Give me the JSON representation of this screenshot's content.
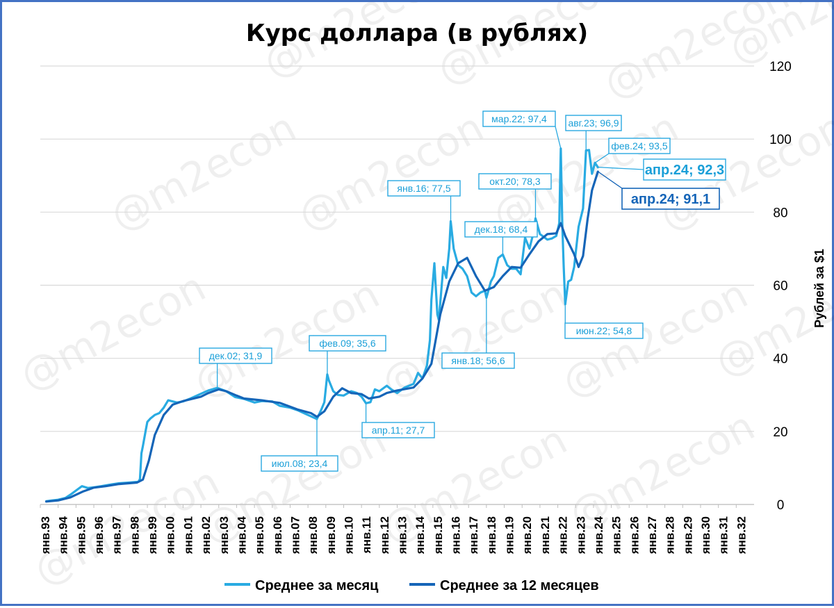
{
  "watermark": "@m2econ",
  "chart_data": {
    "type": "line",
    "title": "Курс доллара (в рублях)",
    "ylabel": "Рублей за $1",
    "xlabel": "",
    "ylim": [
      0,
      120
    ],
    "yticks": [
      0,
      20,
      40,
      60,
      80,
      100,
      120
    ],
    "y_axis_position": "right",
    "grid": true,
    "legend_position": "bottom",
    "x_tick_labels": [
      "янв.93",
      "янв.94",
      "янв.95",
      "янв.96",
      "янв.97",
      "янв.98",
      "янв.99",
      "янв.00",
      "янв.01",
      "янв.02",
      "янв.03",
      "янв.04",
      "янв.05",
      "янв.06",
      "янв.07",
      "янв.08",
      "янв.09",
      "янв.10",
      "янв.11",
      "янв.12",
      "янв.13",
      "янв.14",
      "янв.15",
      "янв.16",
      "янв.17",
      "янв.18",
      "янв.19",
      "янв.20",
      "янв.21",
      "янв.22",
      "янв.23",
      "янв.24",
      "янв.25",
      "янв.26",
      "янв.27",
      "янв.28",
      "янв.29",
      "янв.30",
      "янв.31",
      "янв.32"
    ],
    "x_range": [
      "1993-01",
      "2032-12"
    ],
    "series": [
      {
        "name": "Среднее за месяц",
        "color": "#29abe2",
        "points": [
          [
            "1993-05",
            0.9
          ],
          [
            "1993-09",
            1.1
          ],
          [
            "1994-01",
            1.3
          ],
          [
            "1994-06",
            1.8
          ],
          [
            "1994-10",
            2.9
          ],
          [
            "1995-01",
            3.8
          ],
          [
            "1995-05",
            5.0
          ],
          [
            "1995-09",
            4.5
          ],
          [
            "1996-01",
            4.7
          ],
          [
            "1996-06",
            5.0
          ],
          [
            "1997-01",
            5.5
          ],
          [
            "1997-06",
            5.8
          ],
          [
            "1998-01",
            6.0
          ],
          [
            "1998-07",
            6.2
          ],
          [
            "1998-08",
            7.0
          ],
          [
            "1998-09",
            14.0
          ],
          [
            "1998-10",
            16.0
          ],
          [
            "1998-12",
            20.5
          ],
          [
            "1999-01",
            22.6
          ],
          [
            "1999-03",
            23.5
          ],
          [
            "1999-06",
            24.5
          ],
          [
            "1999-09",
            25.0
          ],
          [
            "1999-12",
            26.5
          ],
          [
            "2000-03",
            28.5
          ],
          [
            "2000-06",
            28.2
          ],
          [
            "2000-09",
            27.9
          ],
          [
            "2001-01",
            28.2
          ],
          [
            "2001-06",
            29.0
          ],
          [
            "2002-01",
            30.3
          ],
          [
            "2002-06",
            31.2
          ],
          [
            "2002-12",
            31.9
          ],
          [
            "2003-06",
            31.0
          ],
          [
            "2003-12",
            29.4
          ],
          [
            "2004-06",
            28.9
          ],
          [
            "2005-01",
            27.9
          ],
          [
            "2005-06",
            28.3
          ],
          [
            "2006-01",
            28.2
          ],
          [
            "2006-06",
            27.0
          ],
          [
            "2007-01",
            26.5
          ],
          [
            "2007-06",
            25.8
          ],
          [
            "2008-01",
            24.5
          ],
          [
            "2008-07",
            23.4
          ],
          [
            "2008-10",
            26.0
          ],
          [
            "2008-12",
            28.0
          ],
          [
            "2009-02",
            35.6
          ],
          [
            "2009-03",
            34.0
          ],
          [
            "2009-06",
            31.0
          ],
          [
            "2009-09",
            30.0
          ],
          [
            "2010-01",
            29.8
          ],
          [
            "2010-06",
            31.0
          ],
          [
            "2010-10",
            30.5
          ],
          [
            "2011-01",
            29.5
          ],
          [
            "2011-04",
            27.7
          ],
          [
            "2011-07",
            28.0
          ],
          [
            "2011-10",
            31.5
          ],
          [
            "2012-01",
            31.0
          ],
          [
            "2012-06",
            32.5
          ],
          [
            "2012-09",
            31.5
          ],
          [
            "2013-01",
            30.5
          ],
          [
            "2013-06",
            32.0
          ],
          [
            "2013-12",
            33.0
          ],
          [
            "2014-03",
            36.0
          ],
          [
            "2014-06",
            34.5
          ],
          [
            "2014-09",
            38.0
          ],
          [
            "2014-11",
            45.0
          ],
          [
            "2014-12",
            56.0
          ],
          [
            "2015-02",
            66.0
          ],
          [
            "2015-04",
            52.0
          ],
          [
            "2015-05",
            50.5
          ],
          [
            "2015-08",
            65.0
          ],
          [
            "2015-10",
            62.0
          ],
          [
            "2015-12",
            70.0
          ],
          [
            "2016-01",
            77.5
          ],
          [
            "2016-03",
            70.0
          ],
          [
            "2016-06",
            65.5
          ],
          [
            "2016-09",
            64.5
          ],
          [
            "2016-12",
            62.5
          ],
          [
            "2017-03",
            58.0
          ],
          [
            "2017-06",
            57.0
          ],
          [
            "2017-09",
            58.0
          ],
          [
            "2017-12",
            58.5
          ],
          [
            "2018-01",
            56.6
          ],
          [
            "2018-04",
            61.0
          ],
          [
            "2018-06",
            62.5
          ],
          [
            "2018-09",
            67.5
          ],
          [
            "2018-12",
            68.4
          ],
          [
            "2019-03",
            65.5
          ],
          [
            "2019-06",
            64.5
          ],
          [
            "2019-09",
            64.5
          ],
          [
            "2019-12",
            63.0
          ],
          [
            "2020-03",
            73.0
          ],
          [
            "2020-06",
            70.0
          ],
          [
            "2020-09",
            75.0
          ],
          [
            "2020-10",
            78.3
          ],
          [
            "2021-01",
            74.0
          ],
          [
            "2021-06",
            72.5
          ],
          [
            "2021-09",
            72.8
          ],
          [
            "2021-12",
            73.5
          ],
          [
            "2022-02",
            77.0
          ],
          [
            "2022-03",
            97.4
          ],
          [
            "2022-04",
            77.0
          ],
          [
            "2022-05",
            65.0
          ],
          [
            "2022-06",
            54.8
          ],
          [
            "2022-08",
            61.0
          ],
          [
            "2022-10",
            61.5
          ],
          [
            "2022-12",
            65.0
          ],
          [
            "2023-03",
            76.0
          ],
          [
            "2023-06",
            81.0
          ],
          [
            "2023-08",
            96.9
          ],
          [
            "2023-10",
            97.0
          ],
          [
            "2023-12",
            90.5
          ],
          [
            "2024-02",
            93.5
          ],
          [
            "2024-04",
            92.3
          ]
        ]
      },
      {
        "name": "Среднее за 12 месяцев",
        "color": "#1565b8",
        "points": [
          [
            "1993-05",
            0.8
          ],
          [
            "1994-01",
            1.1
          ],
          [
            "1994-09",
            1.9
          ],
          [
            "1995-06",
            3.6
          ],
          [
            "1996-01",
            4.6
          ],
          [
            "1996-09",
            5.0
          ],
          [
            "1997-06",
            5.6
          ],
          [
            "1998-06",
            6.0
          ],
          [
            "1998-10",
            6.8
          ],
          [
            "1999-02",
            12.0
          ],
          [
            "1999-06",
            19.0
          ],
          [
            "1999-12",
            24.5
          ],
          [
            "2000-06",
            27.3
          ],
          [
            "2001-01",
            28.3
          ],
          [
            "2002-01",
            29.5
          ],
          [
            "2002-06",
            30.5
          ],
          [
            "2003-01",
            31.5
          ],
          [
            "2003-06",
            31.0
          ],
          [
            "2004-01",
            29.8
          ],
          [
            "2004-06",
            29.0
          ],
          [
            "2005-06",
            28.5
          ],
          [
            "2006-06",
            27.8
          ],
          [
            "2007-06",
            26.0
          ],
          [
            "2008-03",
            25.0
          ],
          [
            "2008-07",
            24.0
          ],
          [
            "2008-12",
            25.5
          ],
          [
            "2009-06",
            29.5
          ],
          [
            "2009-12",
            31.8
          ],
          [
            "2010-06",
            30.5
          ],
          [
            "2011-01",
            30.2
          ],
          [
            "2011-06",
            29.0
          ],
          [
            "2012-01",
            29.5
          ],
          [
            "2012-06",
            30.5
          ],
          [
            "2013-01",
            31.2
          ],
          [
            "2013-12",
            32.0
          ],
          [
            "2014-06",
            34.5
          ],
          [
            "2014-12",
            38.5
          ],
          [
            "2015-06",
            52.0
          ],
          [
            "2015-12",
            61.0
          ],
          [
            "2016-06",
            66.0
          ],
          [
            "2016-12",
            67.5
          ],
          [
            "2017-06",
            62.5
          ],
          [
            "2017-12",
            58.5
          ],
          [
            "2018-06",
            59.5
          ],
          [
            "2018-12",
            62.5
          ],
          [
            "2019-06",
            65.0
          ],
          [
            "2019-12",
            64.8
          ],
          [
            "2020-06",
            68.5
          ],
          [
            "2020-12",
            72.0
          ],
          [
            "2021-06",
            74.0
          ],
          [
            "2021-12",
            74.2
          ],
          [
            "2022-03",
            77.0
          ],
          [
            "2022-06",
            73.5
          ],
          [
            "2022-12",
            68.5
          ],
          [
            "2023-03",
            65.0
          ],
          [
            "2023-06",
            68.0
          ],
          [
            "2023-09",
            78.0
          ],
          [
            "2023-12",
            86.0
          ],
          [
            "2024-04",
            91.1
          ]
        ]
      }
    ],
    "annotations": [
      {
        "label": "дек.02; 31,9",
        "date": "2002-12",
        "value": 31.9,
        "series": 0
      },
      {
        "label": "июл.08; 23,4",
        "date": "2008-07",
        "value": 23.4,
        "series": 0
      },
      {
        "label": "фев.09; 35,6",
        "date": "2009-02",
        "value": 35.6,
        "series": 0
      },
      {
        "label": "апр.11; 27,7",
        "date": "2011-04",
        "value": 27.7,
        "series": 0
      },
      {
        "label": "янв.16; 77,5",
        "date": "2016-01",
        "value": 77.5,
        "series": 0
      },
      {
        "label": "янв.18; 56,6",
        "date": "2018-01",
        "value": 56.6,
        "series": 0
      },
      {
        "label": "дек.18; 68,4",
        "date": "2018-12",
        "value": 68.4,
        "series": 0
      },
      {
        "label": "окт.20; 78,3",
        "date": "2020-10",
        "value": 78.3,
        "series": 0
      },
      {
        "label": "мар.22; 97,4",
        "date": "2022-03",
        "value": 97.4,
        "series": 0
      },
      {
        "label": "июн.22; 54,8",
        "date": "2022-06",
        "value": 54.8,
        "series": 0
      },
      {
        "label": "авг.23; 96,9",
        "date": "2023-08",
        "value": 96.9,
        "series": 0
      },
      {
        "label": "фев.24; 93,5",
        "date": "2024-02",
        "value": 93.5,
        "series": 0
      },
      {
        "label": "апр.24; 92,3",
        "date": "2024-04",
        "value": 92.3,
        "series": 0,
        "emphasis": true
      },
      {
        "label": "апр.24; 91,1",
        "date": "2024-04",
        "value": 91.1,
        "series": 1,
        "emphasis": true
      }
    ]
  }
}
